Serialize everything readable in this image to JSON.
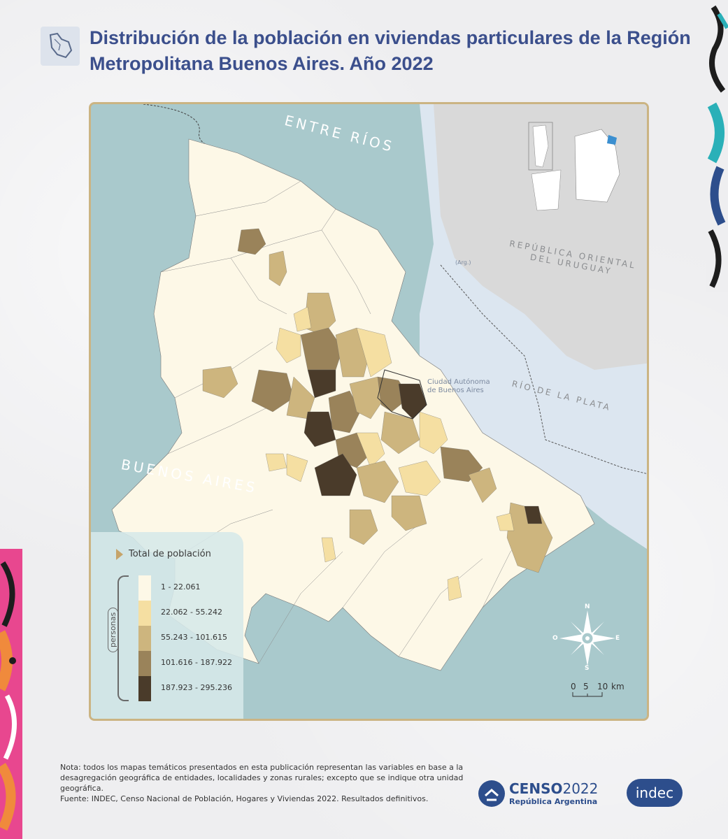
{
  "title": "Distribución de la población en viviendas particulares de la Región Metropolitana Buenos Aires. Año 2022",
  "map": {
    "labels": {
      "entre_rios": "ENTRE RÍOS",
      "buenos_aires": "BUENOS AIRES",
      "uruguay_line1": "REPÚBLICA ORIENTAL",
      "uruguay_line2": "DEL URUGUAY",
      "rio_plata": "RÍO DE LA PLATA",
      "caba_line1": "Ciudad Autónoma",
      "caba_line2": "de Buenos Aires",
      "arg": "(Arg.)"
    },
    "colors": {
      "water": "#a9c9cc",
      "river": "#dce6f0",
      "other_land": "#d9d9d9",
      "class_1": "#fdf8e7",
      "class_2": "#f5dfa2",
      "class_3": "#cdb57e",
      "class_4": "#9a835a",
      "class_5": "#4a3b2a"
    }
  },
  "legend": {
    "title": "Total de población",
    "unit": "personas",
    "classes": [
      {
        "label": "1 - 22.061",
        "color": "#fdf8e7"
      },
      {
        "label": "22.062 - 55.242",
        "color": "#f5dfa2"
      },
      {
        "label": "55.243 - 101.615",
        "color": "#cdb57e"
      },
      {
        "label": "101.616 - 187.922",
        "color": "#9a835a"
      },
      {
        "label": "187.923 - 295.236",
        "color": "#4a3b2a"
      }
    ]
  },
  "compass": {
    "north": "N",
    "south": "S",
    "east": "E",
    "west": "O"
  },
  "scale": {
    "tick0": "0",
    "tick1": "5",
    "tick2": "10",
    "unit": "km"
  },
  "footer": {
    "note": "Nota: todos los mapas temáticos presentados en esta publicación representan las variables en base a la desagregación geográfica de entidades, localidades y zonas rurales; excepto que se indique otra unidad geográfica.",
    "source": "Fuente: INDEC, Censo Nacional de Población, Hogares y Viviendas 2022. Resultados definitivos."
  },
  "logos": {
    "censo_bold": "CENSO",
    "censo_year": "2022",
    "censo_sub": "República Argentina",
    "indec": "indec"
  }
}
